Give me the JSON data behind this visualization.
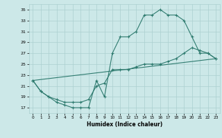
{
  "title": "",
  "xlabel": "Humidex (Indice chaleur)",
  "bg_color": "#cce8e8",
  "grid_color": "#aacfcf",
  "line_color": "#2d7a6e",
  "xlim": [
    -0.5,
    23.5
  ],
  "ylim": [
    16,
    36
  ],
  "yticks": [
    17,
    19,
    21,
    23,
    25,
    27,
    29,
    31,
    33,
    35
  ],
  "xticks": [
    0,
    1,
    2,
    3,
    4,
    5,
    6,
    7,
    8,
    9,
    10,
    11,
    12,
    13,
    14,
    15,
    16,
    17,
    18,
    19,
    20,
    21,
    22,
    23
  ],
  "line1_x": [
    0,
    1,
    2,
    3,
    4,
    5,
    6,
    7,
    8,
    9,
    10,
    11,
    12,
    13,
    14,
    15,
    16,
    17,
    18,
    19,
    20,
    21,
    22,
    23
  ],
  "line1_y": [
    22,
    20,
    19,
    18,
    17.5,
    17,
    17,
    17,
    22,
    19,
    27,
    30,
    30,
    31,
    34,
    34,
    35,
    34,
    34,
    33,
    30,
    27,
    27,
    26
  ],
  "line2_x": [
    0,
    1,
    2,
    3,
    4,
    5,
    6,
    7,
    8,
    9,
    10,
    11,
    12,
    13,
    14,
    15,
    16,
    17,
    18,
    19,
    20,
    21,
    22,
    23
  ],
  "line2_y": [
    22,
    20,
    19,
    18.5,
    18,
    18,
    18,
    18.5,
    21,
    21.5,
    24,
    24,
    24,
    24.5,
    25,
    25,
    25,
    25.5,
    26,
    27,
    28,
    27.5,
    27,
    26
  ],
  "line3_x": [
    0,
    23
  ],
  "line3_y": [
    22,
    26
  ]
}
